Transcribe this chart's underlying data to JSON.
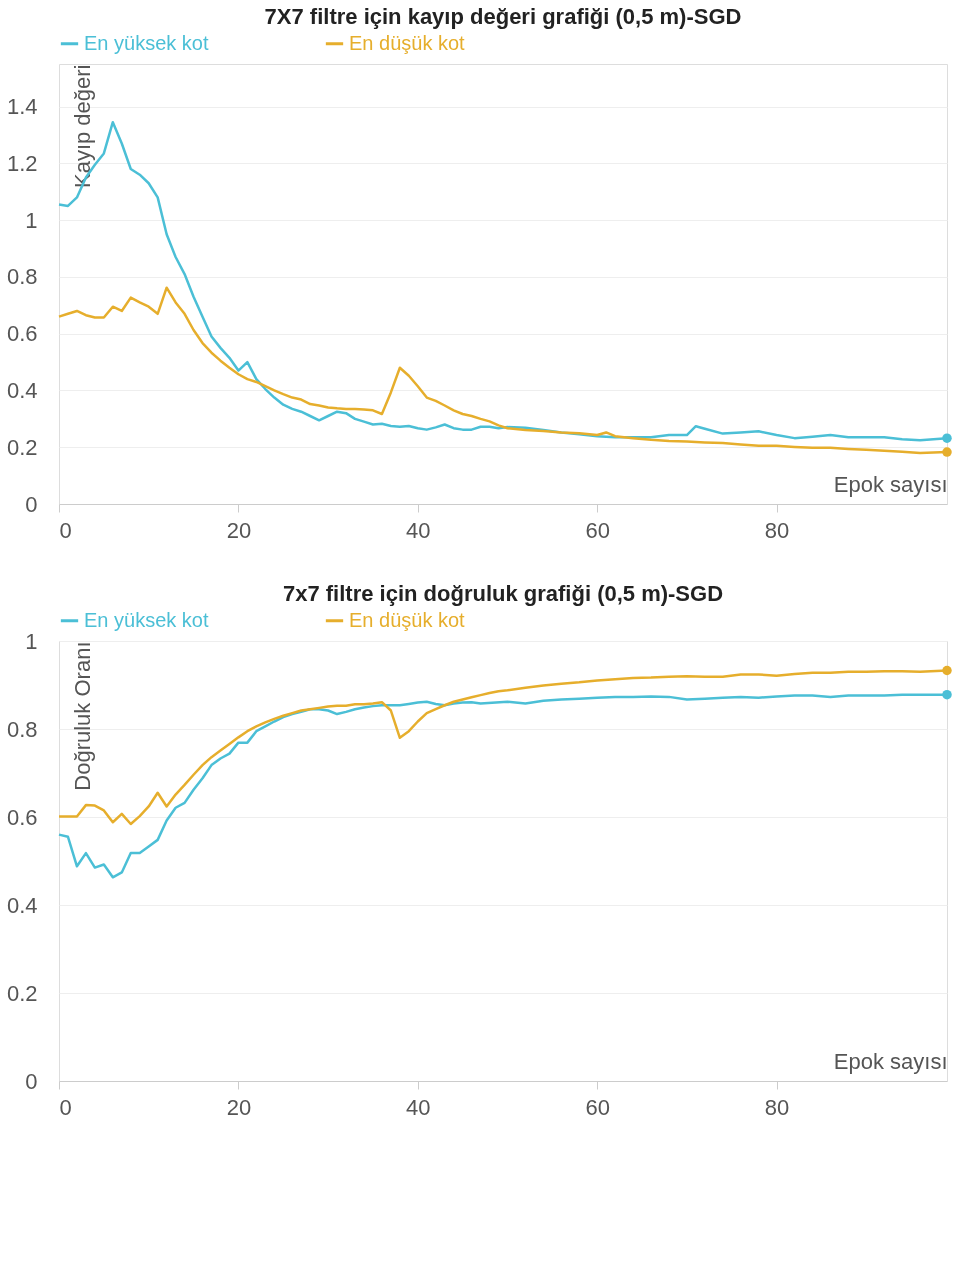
{
  "chart_data": [
    {
      "type": "line",
      "title": "7X7 filtre için kayıp değeri grafiği (0,5 m)-SGD",
      "xlabel": "Epok sayısı",
      "ylabel": "Kayıp değeri",
      "xlim": [
        0,
        99
      ],
      "xticks": [
        0,
        20,
        40,
        60,
        80
      ],
      "ylim": [
        0,
        1.55
      ],
      "yticks": [
        0,
        0.2,
        0.4,
        0.6,
        0.8,
        1,
        1.2,
        1.4
      ],
      "grid": "y",
      "legend": "top",
      "series": [
        {
          "name": "En yüksek kot",
          "color": "#4bbfd6",
          "x": [
            0,
            1,
            2,
            3,
            4,
            5,
            6,
            7,
            8,
            9,
            10,
            11,
            12,
            13,
            14,
            15,
            16,
            17,
            18,
            19,
            20,
            21,
            22,
            23,
            24,
            25,
            26,
            27,
            28,
            29,
            30,
            31,
            32,
            33,
            34,
            35,
            36,
            37,
            38,
            39,
            40,
            41,
            42,
            43,
            44,
            45,
            46,
            47,
            48,
            49,
            50,
            52,
            54,
            56,
            58,
            60,
            62,
            64,
            66,
            68,
            70,
            71,
            72,
            74,
            76,
            78,
            80,
            82,
            84,
            86,
            88,
            90,
            92,
            94,
            96,
            99
          ],
          "values": [
            1.055,
            1.05,
            1.08,
            1.15,
            1.195,
            1.235,
            1.345,
            1.27,
            1.18,
            1.16,
            1.13,
            1.08,
            0.95,
            0.87,
            0.81,
            0.73,
            0.66,
            0.59,
            0.55,
            0.515,
            0.47,
            0.5,
            0.44,
            0.405,
            0.375,
            0.35,
            0.335,
            0.325,
            0.31,
            0.295,
            0.31,
            0.325,
            0.32,
            0.3,
            0.29,
            0.28,
            0.283,
            0.275,
            0.272,
            0.275,
            0.267,
            0.262,
            0.27,
            0.28,
            0.267,
            0.262,
            0.262,
            0.272,
            0.272,
            0.267,
            0.271,
            0.269,
            0.261,
            0.252,
            0.246,
            0.239,
            0.235,
            0.235,
            0.235,
            0.243,
            0.243,
            0.274,
            0.265,
            0.248,
            0.252,
            0.256,
            0.243,
            0.232,
            0.237,
            0.243,
            0.235,
            0.235,
            0.235,
            0.228,
            0.225,
            0.232
          ]
        },
        {
          "name": "En düşük kot",
          "color": "#e6ae2c",
          "x": [
            0,
            1,
            2,
            3,
            4,
            5,
            6,
            7,
            8,
            9,
            10,
            11,
            12,
            13,
            14,
            15,
            16,
            17,
            18,
            19,
            20,
            21,
            22,
            23,
            24,
            25,
            26,
            27,
            28,
            29,
            30,
            31,
            32,
            33,
            34,
            35,
            36,
            37,
            38,
            39,
            40,
            41,
            42,
            43,
            44,
            45,
            46,
            47,
            48,
            49,
            50,
            52,
            54,
            56,
            58,
            60,
            61,
            62,
            64,
            66,
            68,
            70,
            72,
            74,
            76,
            78,
            80,
            82,
            84,
            86,
            88,
            90,
            92,
            94,
            96,
            99
          ],
          "values": [
            0.66,
            0.67,
            0.68,
            0.665,
            0.657,
            0.657,
            0.695,
            0.68,
            0.727,
            0.71,
            0.695,
            0.67,
            0.762,
            0.71,
            0.67,
            0.613,
            0.567,
            0.533,
            0.505,
            0.48,
            0.457,
            0.44,
            0.43,
            0.415,
            0.4,
            0.387,
            0.375,
            0.368,
            0.352,
            0.347,
            0.34,
            0.337,
            0.335,
            0.335,
            0.333,
            0.33,
            0.317,
            0.393,
            0.48,
            0.452,
            0.415,
            0.375,
            0.363,
            0.347,
            0.33,
            0.317,
            0.31,
            0.3,
            0.291,
            0.277,
            0.267,
            0.261,
            0.257,
            0.252,
            0.249,
            0.243,
            0.252,
            0.239,
            0.232,
            0.226,
            0.222,
            0.22,
            0.217,
            0.215,
            0.21,
            0.205,
            0.205,
            0.201,
            0.198,
            0.198,
            0.194,
            0.191,
            0.188,
            0.184,
            0.18,
            0.183
          ]
        }
      ]
    },
    {
      "type": "line",
      "title": "7x7 filtre için doğruluk grafiği (0,5 m)-SGD",
      "xlabel": "Epok sayısı",
      "ylabel": "Doğruluk Oranı",
      "xlim": [
        0,
        99
      ],
      "xticks": [
        0,
        20,
        40,
        60,
        80
      ],
      "ylim": [
        0,
        1
      ],
      "yticks": [
        0,
        0.2,
        0.4,
        0.6,
        0.8,
        1
      ],
      "grid": "y",
      "legend": "top",
      "series": [
        {
          "name": "En yüksek kot",
          "color": "#4bbfd6",
          "x": [
            0,
            1,
            2,
            3,
            4,
            5,
            6,
            7,
            8,
            9,
            10,
            11,
            12,
            13,
            14,
            15,
            16,
            17,
            18,
            19,
            20,
            21,
            22,
            23,
            24,
            25,
            26,
            27,
            28,
            29,
            30,
            31,
            32,
            33,
            34,
            35,
            36,
            37,
            38,
            39,
            40,
            41,
            42,
            43,
            44,
            45,
            46,
            47,
            50,
            52,
            54,
            56,
            58,
            60,
            62,
            64,
            66,
            68,
            70,
            72,
            74,
            76,
            78,
            80,
            82,
            84,
            86,
            88,
            90,
            92,
            94,
            96,
            99
          ],
          "values": [
            0.56,
            0.555,
            0.488,
            0.518,
            0.485,
            0.492,
            0.463,
            0.474,
            0.518,
            0.518,
            0.533,
            0.548,
            0.592,
            0.621,
            0.632,
            0.662,
            0.688,
            0.718,
            0.733,
            0.744,
            0.769,
            0.769,
            0.795,
            0.806,
            0.817,
            0.827,
            0.834,
            0.839,
            0.845,
            0.845,
            0.842,
            0.834,
            0.839,
            0.845,
            0.849,
            0.852,
            0.854,
            0.854,
            0.854,
            0.857,
            0.86,
            0.862,
            0.857,
            0.854,
            0.858,
            0.86,
            0.861,
            0.858,
            0.862,
            0.858,
            0.864,
            0.867,
            0.869,
            0.871,
            0.873,
            0.873,
            0.874,
            0.873,
            0.867,
            0.869,
            0.871,
            0.873,
            0.871,
            0.874,
            0.876,
            0.876,
            0.873,
            0.876,
            0.876,
            0.876,
            0.878,
            0.878,
            0.878
          ]
        },
        {
          "name": "En düşük kot",
          "color": "#e6ae2c",
          "x": [
            0,
            1,
            2,
            3,
            4,
            5,
            6,
            7,
            8,
            9,
            10,
            11,
            12,
            13,
            14,
            15,
            16,
            17,
            18,
            19,
            20,
            21,
            22,
            23,
            24,
            25,
            26,
            27,
            28,
            29,
            30,
            31,
            32,
            33,
            34,
            35,
            36,
            37,
            38,
            39,
            40,
            41,
            42,
            43,
            44,
            45,
            46,
            47,
            48,
            49,
            50,
            52,
            54,
            56,
            58,
            60,
            62,
            64,
            66,
            68,
            70,
            72,
            74,
            76,
            78,
            80,
            82,
            84,
            86,
            88,
            90,
            92,
            94,
            96,
            99
          ],
          "values": [
            0.601,
            0.601,
            0.601,
            0.627,
            0.626,
            0.615,
            0.588,
            0.607,
            0.584,
            0.602,
            0.624,
            0.655,
            0.624,
            0.651,
            0.673,
            0.696,
            0.718,
            0.736,
            0.751,
            0.766,
            0.781,
            0.795,
            0.806,
            0.815,
            0.823,
            0.83,
            0.836,
            0.842,
            0.845,
            0.848,
            0.851,
            0.853,
            0.853,
            0.856,
            0.856,
            0.858,
            0.861,
            0.842,
            0.78,
            0.795,
            0.817,
            0.836,
            0.845,
            0.854,
            0.862,
            0.867,
            0.872,
            0.877,
            0.882,
            0.886,
            0.888,
            0.894,
            0.899,
            0.903,
            0.906,
            0.91,
            0.913,
            0.916,
            0.917,
            0.919,
            0.92,
            0.919,
            0.919,
            0.924,
            0.924,
            0.921,
            0.925,
            0.928,
            0.928,
            0.93,
            0.93,
            0.931,
            0.931,
            0.93,
            0.933
          ]
        }
      ]
    }
  ]
}
